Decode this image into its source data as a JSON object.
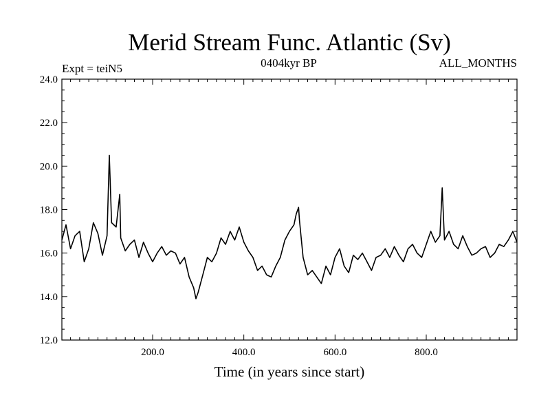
{
  "chart_data": {
    "type": "line",
    "title": "Merid Stream Func. Atlantic (Sv)",
    "subtitle": "0404kyr BP",
    "experiment_label": "Expt = teiN5",
    "period_label": "ALL_MONTHS",
    "xlabel": "Time (in years since start)",
    "ylabel": "",
    "xlim": [
      1,
      999
    ],
    "ylim": [
      12.0,
      24.0
    ],
    "x_ticks": [
      {
        "value": 200,
        "label": "200.0"
      },
      {
        "value": 400,
        "label": "400.0"
      },
      {
        "value": 600,
        "label": "600.0"
      },
      {
        "value": 800,
        "label": "800.0"
      }
    ],
    "y_ticks": [
      {
        "value": 12,
        "label": "12.0"
      },
      {
        "value": 14,
        "label": "14.0"
      },
      {
        "value": 16,
        "label": "16.0"
      },
      {
        "value": 18,
        "label": "18.0"
      },
      {
        "value": 20,
        "label": "20.0"
      },
      {
        "value": 22,
        "label": "22.0"
      },
      {
        "value": 24,
        "label": "24.0"
      }
    ],
    "grid": false,
    "series": [
      {
        "color": "#000000",
        "x": [
          1,
          10,
          20,
          30,
          40,
          50,
          60,
          70,
          80,
          90,
          100,
          105,
          110,
          120,
          128,
          130,
          140,
          150,
          160,
          170,
          180,
          190,
          200,
          210,
          220,
          230,
          240,
          250,
          260,
          270,
          280,
          290,
          295,
          300,
          310,
          320,
          330,
          340,
          350,
          360,
          370,
          380,
          390,
          400,
          410,
          420,
          430,
          440,
          450,
          460,
          470,
          480,
          490,
          500,
          510,
          515,
          520,
          522,
          530,
          540,
          550,
          560,
          570,
          580,
          590,
          600,
          610,
          620,
          630,
          640,
          650,
          660,
          670,
          680,
          690,
          700,
          710,
          720,
          730,
          740,
          750,
          760,
          770,
          780,
          790,
          800,
          810,
          820,
          830,
          835,
          840,
          850,
          860,
          870,
          880,
          890,
          900,
          910,
          920,
          930,
          940,
          950,
          960,
          970,
          980,
          990,
          999
        ],
        "y": [
          16.6,
          17.3,
          16.2,
          16.8,
          17.0,
          15.6,
          16.2,
          17.4,
          16.9,
          15.9,
          16.8,
          20.5,
          17.4,
          17.2,
          18.7,
          16.7,
          16.1,
          16.4,
          16.6,
          15.8,
          16.5,
          16.0,
          15.6,
          16.0,
          16.3,
          15.9,
          16.1,
          16.0,
          15.5,
          15.8,
          14.9,
          14.4,
          13.9,
          14.2,
          15.0,
          15.8,
          15.6,
          16.0,
          16.7,
          16.4,
          17.0,
          16.6,
          17.2,
          16.5,
          16.1,
          15.8,
          15.2,
          15.4,
          15.0,
          14.9,
          15.4,
          15.8,
          16.6,
          17.0,
          17.3,
          17.8,
          18.1,
          17.5,
          15.8,
          15.0,
          15.2,
          14.9,
          14.6,
          15.4,
          15.0,
          15.8,
          16.2,
          15.4,
          15.1,
          15.9,
          15.7,
          16.0,
          15.6,
          15.2,
          15.8,
          15.9,
          16.2,
          15.8,
          16.3,
          15.9,
          15.6,
          16.2,
          16.4,
          16.0,
          15.8,
          16.4,
          17.0,
          16.5,
          16.8,
          19.0,
          16.6,
          17.0,
          16.4,
          16.2,
          16.8,
          16.3,
          15.9,
          16.0,
          16.2,
          16.3,
          15.8,
          16.0,
          16.4,
          16.3,
          16.6,
          17.0,
          16.5
        ]
      }
    ]
  }
}
